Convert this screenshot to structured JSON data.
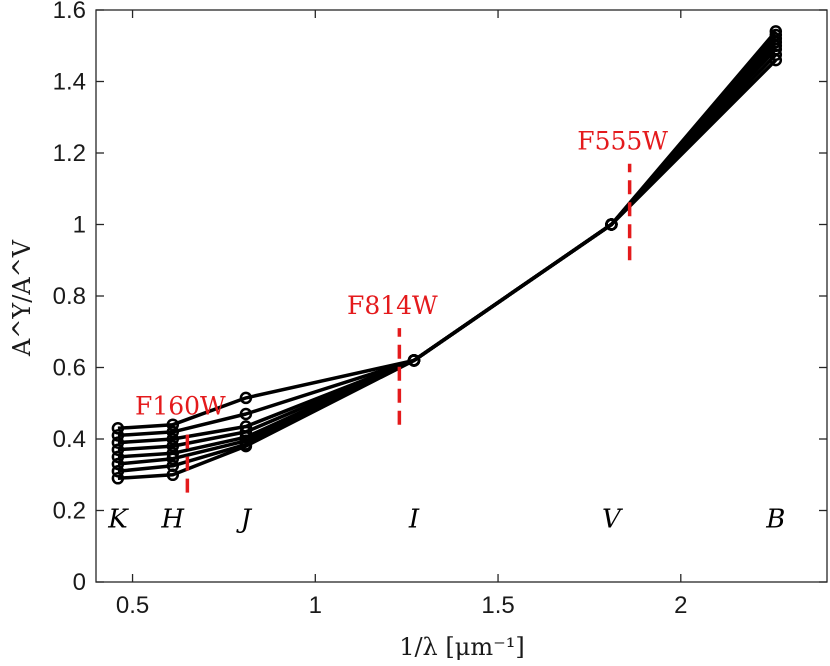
{
  "chart_data": {
    "type": "line",
    "xlabel": "1/λ [μm⁻¹]",
    "ylabel": "A^Y/A^V",
    "xlim": [
      0.4,
      2.4
    ],
    "ylim": [
      0,
      1.6
    ],
    "xticks": [
      0.5,
      1,
      1.5,
      2
    ],
    "xtick_labels": [
      "0.5",
      "1",
      "1.5",
      "2"
    ],
    "yticks": [
      0,
      0.2,
      0.4,
      0.6,
      0.8,
      1,
      1.2,
      1.4,
      1.6
    ],
    "ytick_labels": [
      "0",
      "0.2",
      "0.4",
      "0.6",
      "0.8",
      "1",
      "1.2",
      "1.4",
      "1.6"
    ],
    "grid": false,
    "x": [
      0.46,
      0.61,
      0.81,
      1.27,
      1.81,
      2.26
    ],
    "series": [
      {
        "values": [
          0.43,
          0.44,
          0.515,
          0.62,
          1.0,
          1.46
        ]
      },
      {
        "values": [
          0.41,
          0.42,
          0.47,
          0.62,
          1.0,
          1.475
        ]
      },
      {
        "values": [
          0.39,
          0.4,
          0.435,
          0.62,
          1.0,
          1.49
        ]
      },
      {
        "values": [
          0.37,
          0.38,
          0.42,
          0.62,
          1.0,
          1.5
        ]
      },
      {
        "values": [
          0.35,
          0.36,
          0.405,
          0.62,
          1.0,
          1.51
        ]
      },
      {
        "values": [
          0.33,
          0.345,
          0.395,
          0.62,
          1.0,
          1.52
        ]
      },
      {
        "values": [
          0.31,
          0.325,
          0.385,
          0.62,
          1.0,
          1.53
        ]
      },
      {
        "values": [
          0.29,
          0.3,
          0.38,
          0.62,
          1.0,
          1.54
        ]
      }
    ],
    "band_labels": [
      {
        "text": "K",
        "x": 0.46,
        "y": 0.2
      },
      {
        "text": "H",
        "x": 0.61,
        "y": 0.2
      },
      {
        "text": "J",
        "x": 0.81,
        "y": 0.2
      },
      {
        "text": "I",
        "x": 1.27,
        "y": 0.2
      },
      {
        "text": "V",
        "x": 1.81,
        "y": 0.2
      },
      {
        "text": "B",
        "x": 2.26,
        "y": 0.2
      }
    ],
    "filters": [
      {
        "label": "F160W",
        "x": 0.65,
        "y_range": [
          0.25,
          0.43
        ]
      },
      {
        "label": "F814W",
        "x": 1.23,
        "y_range": [
          0.44,
          0.71
        ]
      },
      {
        "label": "F555W",
        "x": 1.86,
        "y_range": [
          0.9,
          1.17
        ]
      }
    ],
    "colors": {
      "series": "#000000",
      "filters": "#e41a1c"
    }
  }
}
